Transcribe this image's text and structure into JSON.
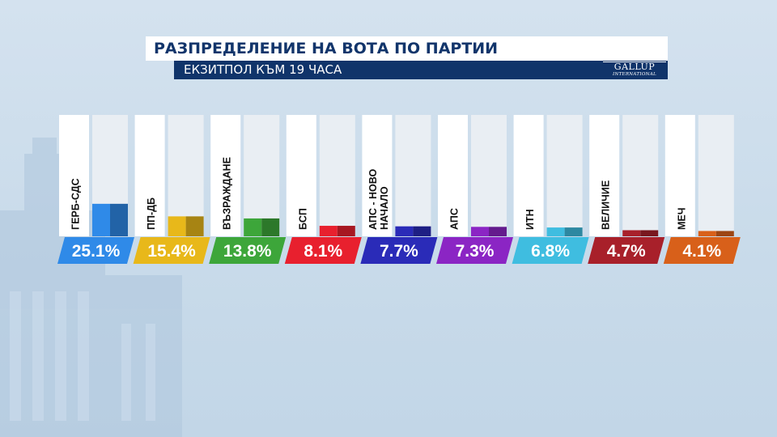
{
  "header": {
    "title": "РАЗПРЕДЕЛЕНИЕ НА ВОТА ПО ПАРТИИ",
    "subtitle": "ЕКЗИТПОЛ КЪМ 19 ЧАСА"
  },
  "logo": {
    "name": "GALLUP",
    "tagline": "INTERNATIONAL"
  },
  "chart_data": {
    "type": "bar",
    "title": "РАЗПРЕДЕЛЕНИЕ НА ВОТА ПО ПАРТИИ",
    "subtitle": "ЕКЗИТПОЛ КЪМ 19 ЧАСА",
    "categories": [
      "ГЕРБ-СДС",
      "ПП-ДБ",
      "ВЪЗРАЖДАНЕ",
      "БСП",
      "АПС - НОВО НАЧАЛО",
      "АПС",
      "ИТН",
      "ВЕЛИЧИЕ",
      "МЕЧ"
    ],
    "category_lines": [
      [
        "ГЕРБ-СДС"
      ],
      [
        "ПП-ДБ"
      ],
      [
        "ВЪЗРАЖДАНЕ"
      ],
      [
        "БСП"
      ],
      [
        "АПС - НОВО",
        "НАЧАЛО"
      ],
      [
        "АПС"
      ],
      [
        "ИТН"
      ],
      [
        "ВЕЛИЧИЕ"
      ],
      [
        "МЕЧ"
      ]
    ],
    "values": [
      25.1,
      15.4,
      13.8,
      8.1,
      7.7,
      7.3,
      6.8,
      4.7,
      4.1
    ],
    "value_labels": [
      "25.1%",
      "15.4%",
      "13.8%",
      "8.1%",
      "7.7%",
      "7.3%",
      "6.8%",
      "4.7%",
      "4.1%"
    ],
    "colors": [
      "#2f8ae8",
      "#e8b81a",
      "#3da63a",
      "#e8202e",
      "#2a2bb8",
      "#8b25c4",
      "#3fbde0",
      "#a8202a",
      "#d8601a"
    ],
    "ylim": [
      0,
      100
    ],
    "grid": false,
    "legend": "none"
  }
}
